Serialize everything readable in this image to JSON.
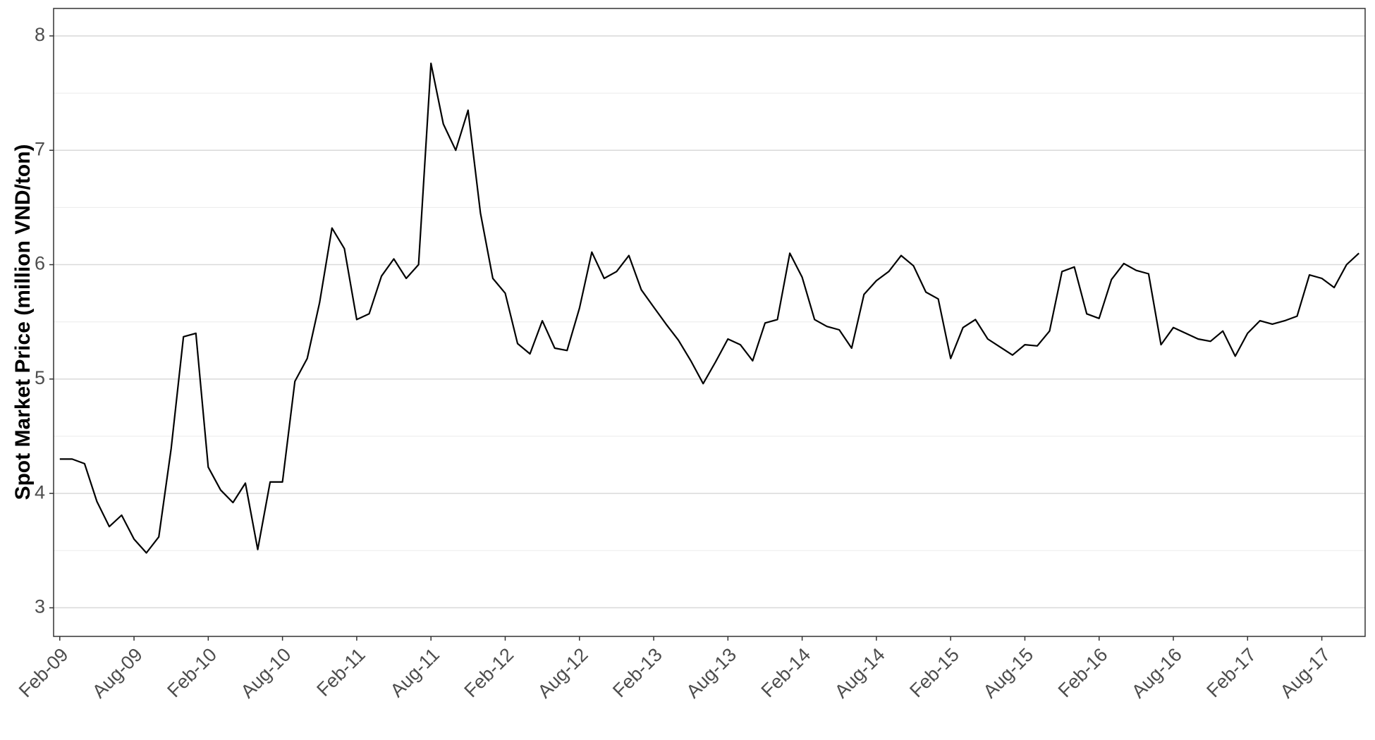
{
  "chart_data": {
    "type": "line",
    "y_label": "Spot Market Price (million VND/ton)",
    "x": [
      "Feb-09",
      "Mar-09",
      "Apr-09",
      "May-09",
      "Jun-09",
      "Jul-09",
      "Aug-09",
      "Sep-09",
      "Oct-09",
      "Nov-09",
      "Dec-09",
      "Jan-10",
      "Feb-10",
      "Mar-10",
      "Apr-10",
      "May-10",
      "Jun-10",
      "Jul-10",
      "Aug-10",
      "Sep-10",
      "Oct-10",
      "Nov-10",
      "Dec-10",
      "Jan-11",
      "Feb-11",
      "Mar-11",
      "Apr-11",
      "May-11",
      "Jun-11",
      "Jul-11",
      "Aug-11",
      "Sep-11",
      "Oct-11",
      "Nov-11",
      "Dec-11",
      "Jan-12",
      "Feb-12",
      "Mar-12",
      "Apr-12",
      "May-12",
      "Jun-12",
      "Jul-12",
      "Aug-12",
      "Sep-12",
      "Oct-12",
      "Nov-12",
      "Dec-12",
      "Jan-13",
      "Feb-13",
      "Mar-13",
      "Apr-13",
      "May-13",
      "Jun-13",
      "Jul-13",
      "Aug-13",
      "Sep-13",
      "Oct-13",
      "Nov-13",
      "Dec-13",
      "Jan-14",
      "Feb-14",
      "Mar-14",
      "Apr-14",
      "May-14",
      "Jun-14",
      "Jul-14",
      "Aug-14",
      "Sep-14",
      "Oct-14",
      "Nov-14",
      "Dec-14",
      "Jan-15",
      "Feb-15",
      "Mar-15",
      "Apr-15",
      "May-15",
      "Jun-15",
      "Jul-15",
      "Aug-15",
      "Sep-15",
      "Oct-15",
      "Nov-15",
      "Dec-15",
      "Jan-16",
      "Feb-16",
      "Mar-16",
      "Apr-16",
      "May-16",
      "Jun-16",
      "Jul-16",
      "Aug-16",
      "Sep-16",
      "Oct-16",
      "Nov-16",
      "Dec-16",
      "Jan-17",
      "Feb-17",
      "Mar-17",
      "Apr-17",
      "May-17",
      "Jun-17",
      "Jul-17",
      "Aug-17",
      "Sep-17",
      "Oct-17",
      "Nov-17"
    ],
    "series": [
      {
        "color": "#000000",
        "values": [
          4.3,
          4.3,
          4.26,
          3.93,
          3.71,
          3.81,
          3.6,
          3.48,
          3.62,
          4.39,
          5.37,
          5.4,
          4.23,
          4.03,
          3.92,
          4.09,
          3.51,
          4.1,
          4.1,
          4.98,
          5.18,
          5.67,
          6.32,
          6.14,
          5.52,
          5.57,
          5.9,
          6.05,
          5.88,
          6.0,
          7.76,
          7.23,
          7.0,
          7.35,
          6.45,
          5.88,
          5.75,
          5.31,
          5.22,
          5.51,
          5.27,
          5.25,
          5.62,
          6.11,
          5.88,
          5.94,
          6.08,
          5.78,
          5.63,
          5.48,
          5.34,
          5.16,
          4.96,
          5.15,
          5.35,
          5.3,
          5.16,
          5.49,
          5.52,
          6.1,
          5.89,
          5.52,
          5.46,
          5.43,
          5.27,
          5.74,
          5.86,
          5.94,
          6.08,
          5.99,
          5.76,
          5.7,
          5.18,
          5.45,
          5.52,
          5.35,
          5.28,
          5.21,
          5.3,
          5.29,
          5.42,
          5.94,
          5.98,
          5.57,
          5.53,
          5.87,
          6.01,
          5.95,
          5.92,
          5.3,
          5.45,
          5.4,
          5.35,
          5.33,
          5.42,
          5.2,
          5.4,
          5.51,
          5.48,
          5.51,
          5.55,
          5.91,
          5.88,
          5.8,
          6.0,
          6.1
        ]
      }
    ],
    "xticks": [
      "Feb-09",
      "Aug-09",
      "Feb-10",
      "Aug-10",
      "Feb-11",
      "Aug-11",
      "Feb-12",
      "Aug-12",
      "Feb-13",
      "Aug-13",
      "Feb-14",
      "Aug-14",
      "Feb-15",
      "Aug-15",
      "Feb-16",
      "Aug-16",
      "Feb-17",
      "Aug-17"
    ],
    "ylim": [
      2.75,
      8.24
    ],
    "yticks": [
      3,
      4,
      5,
      6,
      7,
      8
    ],
    "grid": true
  }
}
